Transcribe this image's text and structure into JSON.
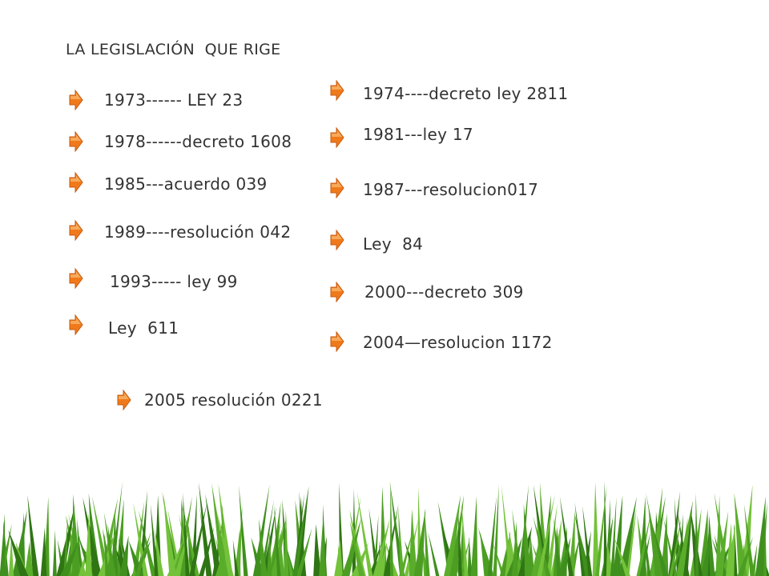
{
  "title": "LA LEGISLACIÓN  QUE RIGE",
  "left_items": [
    "1973------ LEY 23",
    "1978------decreto 1608",
    "1985---acuerdo 039",
    "1989----resolución 042",
    "1993----- ley 99",
    "Ley  611"
  ],
  "right_items": [
    "1974----decreto ley 2811",
    "1981---ley 17",
    "1987---resolucion017",
    "Ley  84",
    "2000---decreto 309",
    "2004—resolucion 1172"
  ],
  "bottom_item": "2005 resolución 0221"
}
